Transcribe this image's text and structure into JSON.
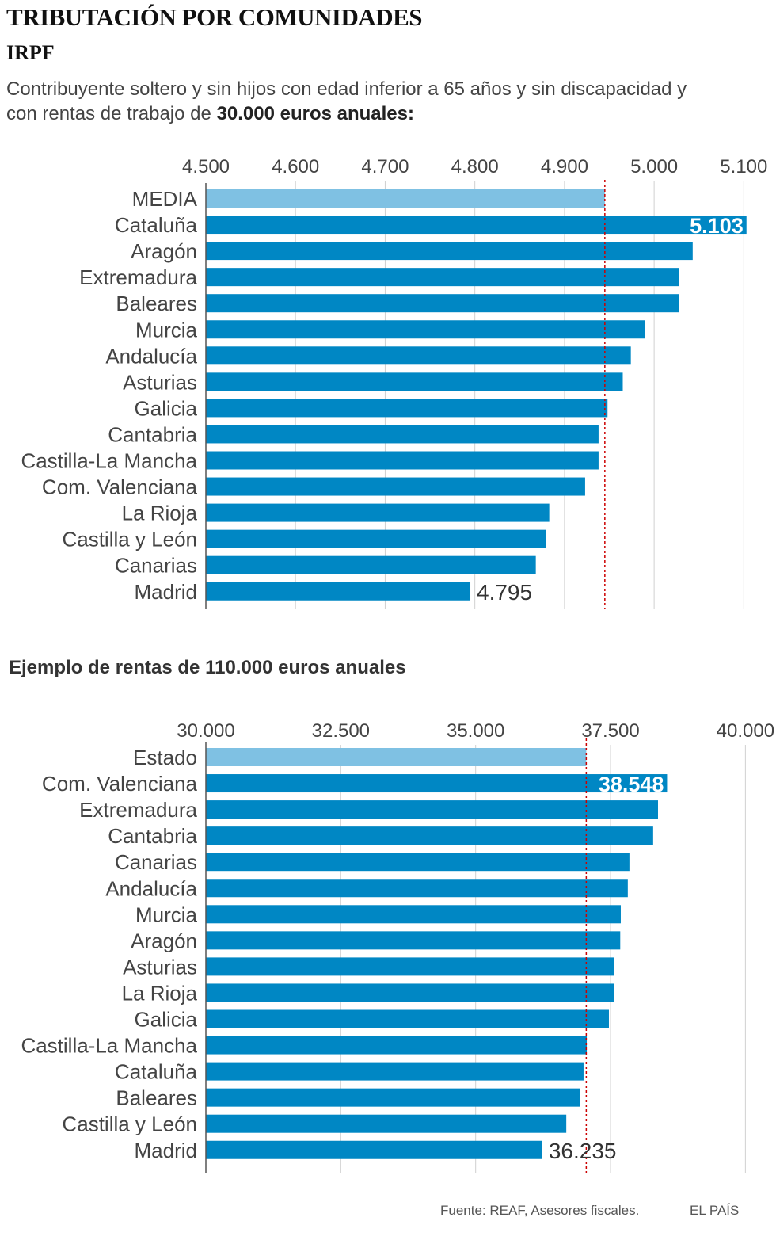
{
  "header": {
    "title": "TRIBUTACIÓN POR COMUNIDADES",
    "subtitle": "IRPF",
    "description_prefix": "Contribuyente soltero y sin hijos con edad inferior a 65 años y sin discapacidad y con rentas de trabajo de",
    "description_bold": "30.000 euros anuales:"
  },
  "section2_title": "Ejemplo de rentas de 110.000 euros anuales",
  "footer": {
    "source": "Fuente: REAF, Asesores fiscales.",
    "brand": "EL PAÍS"
  },
  "colors": {
    "bar": "#0087c4",
    "highlight_bar": "#7fc1e3",
    "reference_line": "#cc0000",
    "grid": "#d0d0d0"
  },
  "chart_data": [
    {
      "type": "bar",
      "orientation": "horizontal",
      "title": "Contribuyente soltero y sin hijos con edad inferior a 65 años y sin discapacidad y con rentas de trabajo de 30.000 euros anuales",
      "xlim": [
        4500,
        5105
      ],
      "ticks": [
        4500,
        4600,
        4700,
        4800,
        4900,
        5000,
        5100
      ],
      "tick_labels": [
        "4.500",
        "4.600",
        "4.700",
        "4.800",
        "4.900",
        "5.000",
        "5.100"
      ],
      "categories": [
        "MEDIA",
        "Cataluña",
        "Aragón",
        "Extremadura",
        "Baleares",
        "Murcia",
        "Andalucía",
        "Asturias",
        "Galicia",
        "Cantabria",
        "Castilla-La Mancha",
        "Com. Valenciana",
        "La Rioja",
        "Castilla y León",
        "Canarias",
        "Madrid"
      ],
      "values": [
        4945,
        5103,
        5043,
        5028,
        5028,
        4990,
        4974,
        4965,
        4948,
        4938,
        4938,
        4923,
        4883,
        4879,
        4868,
        4795
      ],
      "highlight_index": 0,
      "reference_value": 4945,
      "data_labels": [
        {
          "index": 1,
          "text": "5.103",
          "position": "inside"
        },
        {
          "index": 15,
          "text": "4.795",
          "position": "outside"
        }
      ]
    },
    {
      "type": "bar",
      "orientation": "horizontal",
      "title": "Ejemplo de rentas de 110.000 euros anuales",
      "xlim": [
        30000,
        40200
      ],
      "ticks": [
        30000,
        32500,
        35000,
        37500,
        40000
      ],
      "tick_labels": [
        "30.000",
        "32.500",
        "35.000",
        "37.500",
        "40.000"
      ],
      "categories": [
        "Estado",
        "Com. Valenciana",
        "Extremadura",
        "Cantabria",
        "Canarias",
        "Andalucía",
        "Murcia",
        "Aragón",
        "Asturias",
        "La Rioja",
        "Galicia",
        "Castilla-La Mancha",
        "Cataluña",
        "Baleares",
        "Castilla y León",
        "Madrid"
      ],
      "values": [
        37050,
        38548,
        38380,
        38290,
        37850,
        37820,
        37690,
        37680,
        37560,
        37560,
        37470,
        37060,
        37000,
        36940,
        36680,
        36235
      ],
      "highlight_index": 0,
      "reference_value": 37050,
      "data_labels": [
        {
          "index": 1,
          "text": "38.548",
          "position": "inside"
        },
        {
          "index": 15,
          "text": "36.235",
          "position": "outside"
        }
      ]
    }
  ]
}
